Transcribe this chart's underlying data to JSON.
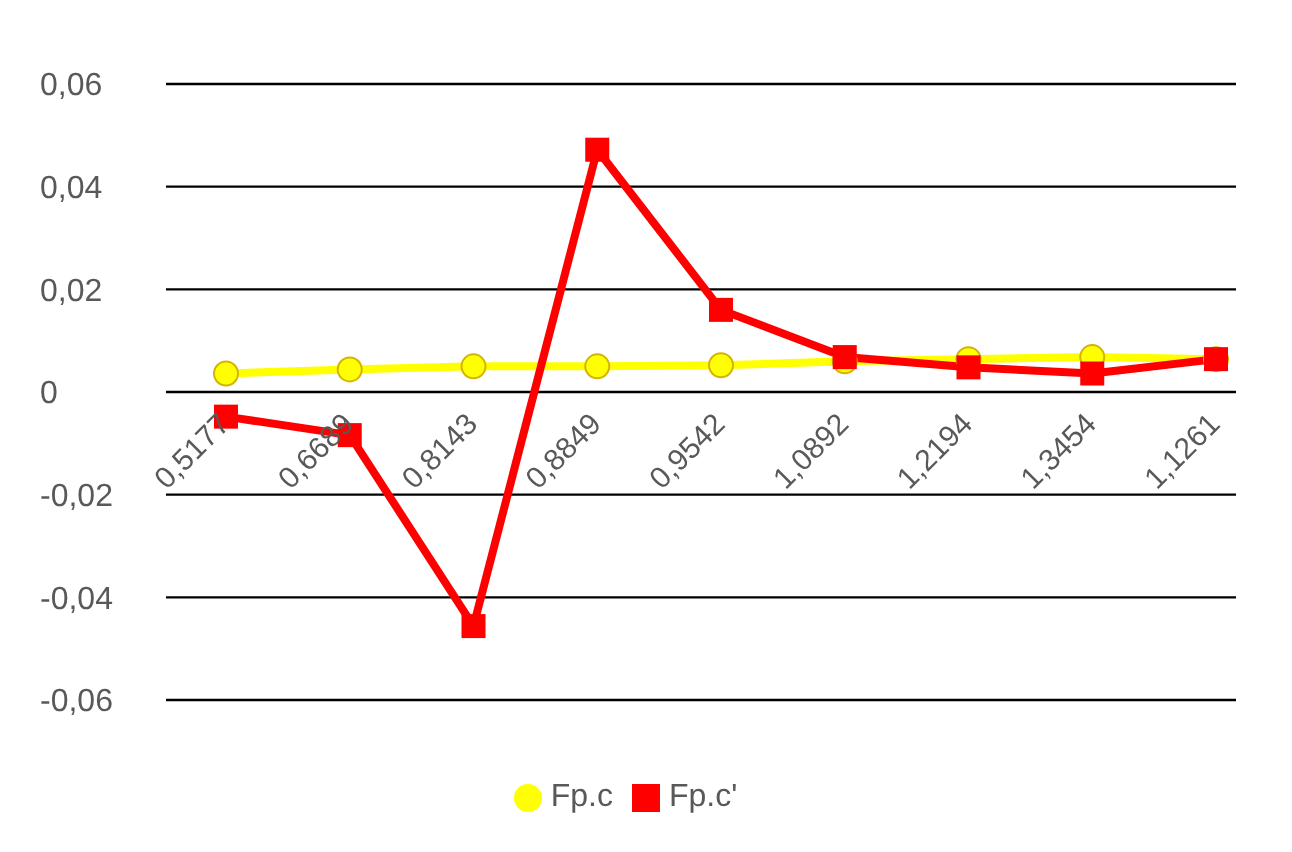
{
  "chart_data": {
    "type": "line",
    "categories": [
      "0,5177",
      "0,6689",
      "0,8143",
      "0,8849",
      "0,9542",
      "1,0892",
      "1,2194",
      "1,3454",
      "1,1261"
    ],
    "series": [
      {
        "name": "Fp.c",
        "color": "#ffff00",
        "marker": "circle",
        "values": [
          0.0036,
          0.0044,
          0.005,
          0.005,
          0.0052,
          0.006,
          0.0064,
          0.0068,
          0.0064
        ]
      },
      {
        "name": "Fp.c'",
        "color": "#ff0000",
        "marker": "square",
        "values": [
          -0.0048,
          -0.0084,
          -0.0456,
          0.0472,
          0.016,
          0.0068,
          0.0048,
          0.0036,
          0.0064
        ]
      }
    ],
    "ylim": [
      -0.06,
      0.06
    ],
    "yticks": [
      {
        "value": -0.06,
        "label": "-0,06"
      },
      {
        "value": -0.04,
        "label": "-0,04"
      },
      {
        "value": -0.02,
        "label": "-0,02"
      },
      0,
      {
        "value": 0.02,
        "label": "0,02"
      },
      {
        "value": 0.04,
        "label": "0,04"
      },
      {
        "value": 0.06,
        "label": "0,06"
      }
    ],
    "grid": "y",
    "legend": "bottom"
  }
}
